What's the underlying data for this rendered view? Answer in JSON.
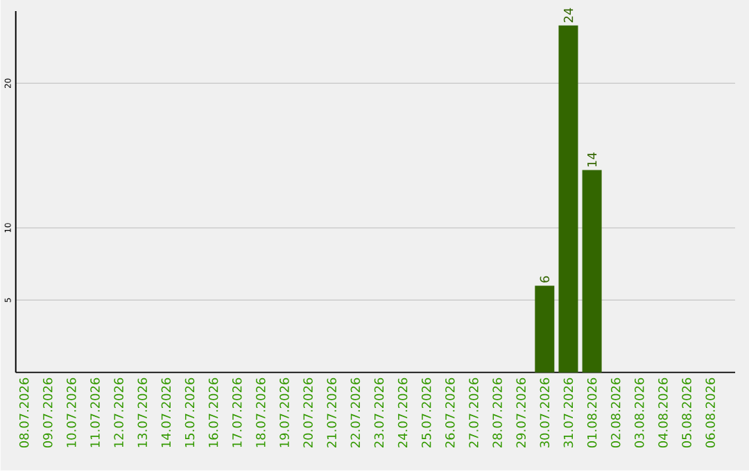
{
  "chart_data": {
    "type": "bar",
    "categories": [
      "08.07.2026",
      "09.07.2026",
      "10.07.2026",
      "11.07.2026",
      "12.07.2026",
      "13.07.2026",
      "14.07.2026",
      "15.07.2026",
      "16.07.2026",
      "17.07.2026",
      "18.07.2026",
      "19.07.2026",
      "20.07.2026",
      "21.07.2026",
      "22.07.2026",
      "23.07.2026",
      "24.07.2026",
      "25.07.2026",
      "26.07.2026",
      "27.07.2026",
      "28.07.2026",
      "29.07.2026",
      "30.07.2026",
      "31.07.2026",
      "01.08.2026",
      "02.08.2026",
      "03.08.2026",
      "04.08.2026",
      "05.08.2026",
      "06.08.2026"
    ],
    "values": [
      0,
      0,
      0,
      0,
      0,
      0,
      0,
      0,
      0,
      0,
      0,
      0,
      0,
      0,
      0,
      0,
      0,
      0,
      0,
      0,
      0,
      0,
      6,
      24,
      14,
      0,
      0,
      0,
      0,
      0
    ],
    "value_labels": [
      null,
      null,
      null,
      null,
      null,
      null,
      null,
      null,
      null,
      null,
      null,
      null,
      null,
      null,
      null,
      null,
      null,
      null,
      null,
      null,
      null,
      null,
      "6",
      "24",
      "14",
      null,
      null,
      null,
      null,
      null
    ],
    "color": "#336600",
    "ylim": [
      0,
      25
    ],
    "yticks": [
      5,
      10,
      20
    ],
    "grid": "y"
  }
}
